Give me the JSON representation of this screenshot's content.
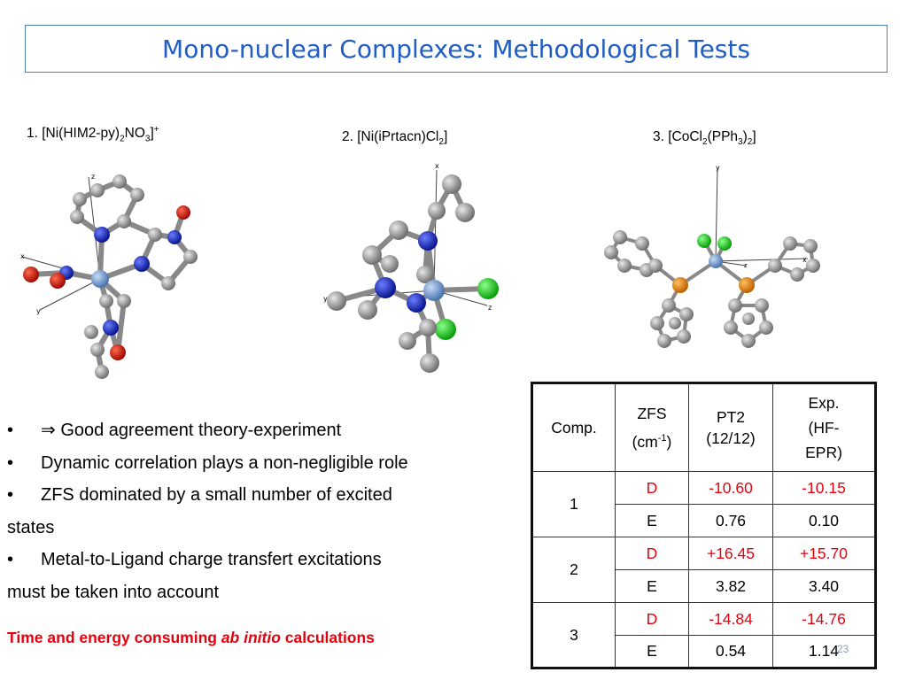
{
  "slide": {
    "title": "Mono-nuclear Complexes: Methodological Tests",
    "page_number": "23"
  },
  "complexes": [
    {
      "label_prefix": "1. [Ni(HIM2-py)",
      "sub1": "2",
      "mid": "NO",
      "sub2": "3",
      "tail": "]",
      "sup": "+"
    },
    {
      "label_prefix": "2. [Ni(iPrtacn)Cl",
      "sub1": "2",
      "tail": "]"
    },
    {
      "label_prefix": "3. [CoCl",
      "sub1": "2",
      "mid": "(PPh",
      "sub2": "3",
      "mid2": ")",
      "sub3": "2",
      "tail": "]"
    }
  ],
  "axis_labels": {
    "x": "x",
    "y": "y",
    "z": "z"
  },
  "bullets": {
    "marker": "•",
    "item1_arrow": "⇒",
    "item1": "Good agreement theory-experiment",
    "item2": "Dynamic correlation plays a non-negligible role",
    "item3a": "ZFS dominated by a small number of excited",
    "item3b": "states",
    "item4a": "Metal-to-Ligand charge transfert excitations",
    "item4b": "must be taken into account"
  },
  "warning": {
    "pre": "Time and energy consuming ",
    "italic": "ab initio",
    "post": " calculations"
  },
  "table": {
    "headers": {
      "comp": "Comp.",
      "zfs_line1": "ZFS",
      "zfs_line2_pre": "(cm",
      "zfs_sup": "-1",
      "zfs_line2_post": ")",
      "pt2_line1": "PT2",
      "pt2_line2": "(12/12)",
      "exp_line1": "Exp.",
      "exp_line2": "(HF-",
      "exp_line3": "EPR)"
    },
    "rows": [
      {
        "comp": "1",
        "d_label": "D",
        "d_pt2": "-10.60",
        "d_exp": "-10.15",
        "e_label": "E",
        "e_pt2": "0.76",
        "e_exp": "0.10"
      },
      {
        "comp": "2",
        "d_label": "D",
        "d_pt2": "+16.45",
        "d_exp": "+15.70",
        "e_label": "E",
        "e_pt2": "3.82",
        "e_exp": "3.40"
      },
      {
        "comp": "3",
        "d_label": "D",
        "d_pt2": "-14.84",
        "d_exp": "-14.76",
        "e_label": "E",
        "e_pt2": "0.54",
        "e_exp": "1.14"
      }
    ]
  },
  "colors": {
    "title": "#1f5cc4",
    "red": "#e8000d",
    "carbon": "#9a9a9a",
    "nitrogen": "#1a2fd6",
    "oxygen": "#d81a0a",
    "metal": "#7fa6d8",
    "chlorine": "#19d419",
    "phosphorus": "#ee8c10"
  }
}
